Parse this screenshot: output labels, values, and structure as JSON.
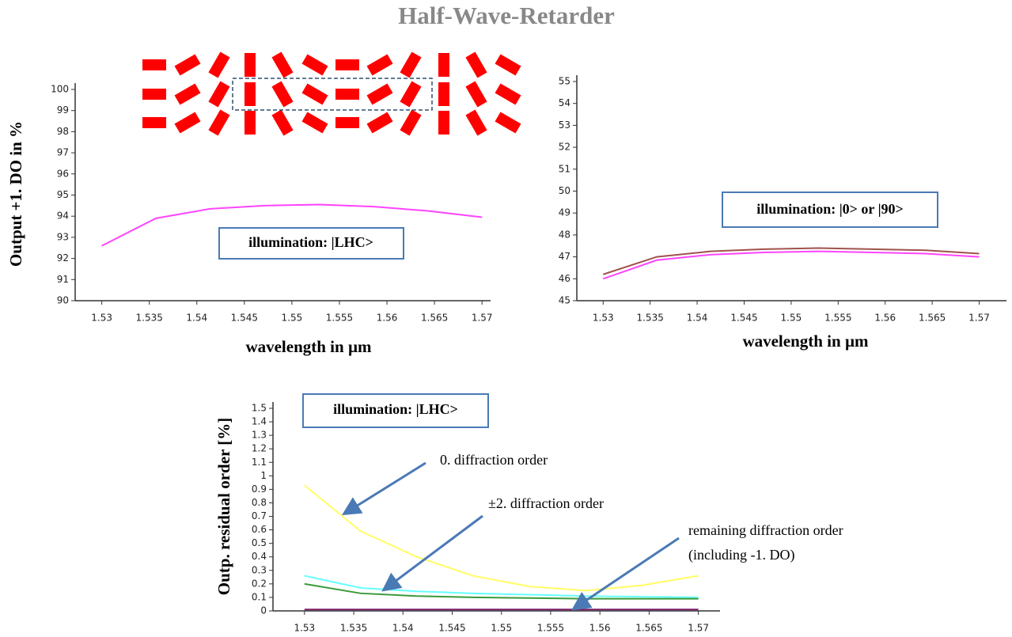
{
  "title": "Half-Wave-Retarder",
  "chart_data": [
    {
      "type": "line",
      "xlabel": "wavelength in µm",
      "ylabel": "Output +1. DO in %",
      "x": [
        1.53,
        1.5357,
        1.5414,
        1.5471,
        1.5529,
        1.5586,
        1.5643,
        1.57
      ],
      "series": [
        {
          "color": "#ff44ff",
          "values": [
            92.6,
            93.9,
            94.35,
            94.5,
            94.55,
            94.45,
            94.25,
            93.95
          ]
        }
      ],
      "xlim": [
        1.5272,
        1.5709
      ],
      "ylim": [
        90,
        100
      ],
      "xticks": [
        1.53,
        1.535,
        1.54,
        1.545,
        1.55,
        1.555,
        1.56,
        1.565,
        1.57
      ],
      "yticks": [
        90,
        91,
        92,
        93,
        94,
        95,
        96,
        97,
        98,
        99,
        100
      ],
      "grid": false,
      "annotations": [
        "illumination: |LHC>"
      ]
    },
    {
      "type": "line",
      "xlabel": "wavelength in µm",
      "x": [
        1.53,
        1.5357,
        1.5414,
        1.5471,
        1.5529,
        1.5586,
        1.5643,
        1.57
      ],
      "series": [
        {
          "color": "#a0524d",
          "values": [
            46.2,
            47.0,
            47.25,
            47.35,
            47.4,
            47.35,
            47.3,
            47.15
          ]
        },
        {
          "color": "#ff44ff",
          "values": [
            46.0,
            46.85,
            47.1,
            47.2,
            47.25,
            47.2,
            47.15,
            47.0
          ]
        }
      ],
      "xlim": [
        1.5272,
        1.5729
      ],
      "ylim": [
        45,
        55
      ],
      "xticks": [
        1.53,
        1.535,
        1.54,
        1.545,
        1.55,
        1.555,
        1.56,
        1.565,
        1.57
      ],
      "yticks": [
        45,
        46,
        47,
        48,
        49,
        50,
        51,
        52,
        53,
        54,
        55
      ],
      "grid": false,
      "annotations": [
        "illumination: |0> or |90>"
      ]
    },
    {
      "type": "line",
      "ylabel": "Outp. residual order [%]",
      "x": [
        1.53,
        1.5357,
        1.5414,
        1.5471,
        1.5529,
        1.5586,
        1.5643,
        1.57
      ],
      "series": [
        {
          "color": "#ffff66",
          "values": [
            0.93,
            0.59,
            0.4,
            0.26,
            0.18,
            0.15,
            0.19,
            0.26
          ]
        },
        {
          "color": "#66ffff",
          "values": [
            0.26,
            0.17,
            0.145,
            0.13,
            0.12,
            0.11,
            0.105,
            0.1
          ]
        },
        {
          "color": "#3a9a3a",
          "values": [
            0.2,
            0.13,
            0.11,
            0.1,
            0.095,
            0.09,
            0.09,
            0.09
          ]
        },
        {
          "color": "#7b1f6a",
          "values": [
            0.01,
            0.01,
            0.01,
            0.01,
            0.01,
            0.01,
            0.01,
            0.01
          ]
        }
      ],
      "xlim": [
        1.5268,
        1.5722
      ],
      "ylim": [
        0,
        1.5
      ],
      "xticks": [
        1.53,
        1.535,
        1.54,
        1.545,
        1.55,
        1.555,
        1.56,
        1.565,
        1.57
      ],
      "yticks": [
        0,
        0.1,
        0.2,
        0.3,
        0.4,
        0.5,
        0.6,
        0.7,
        0.8,
        0.9,
        1,
        1.1,
        1.2,
        1.3,
        1.4,
        1.5
      ],
      "grid": false,
      "annotations": [
        "illumination: |LHC>",
        "0. diffraction order",
        "±2. diffraction order",
        "remaining diffraction order",
        "(including -1. DO)"
      ]
    }
  ]
}
